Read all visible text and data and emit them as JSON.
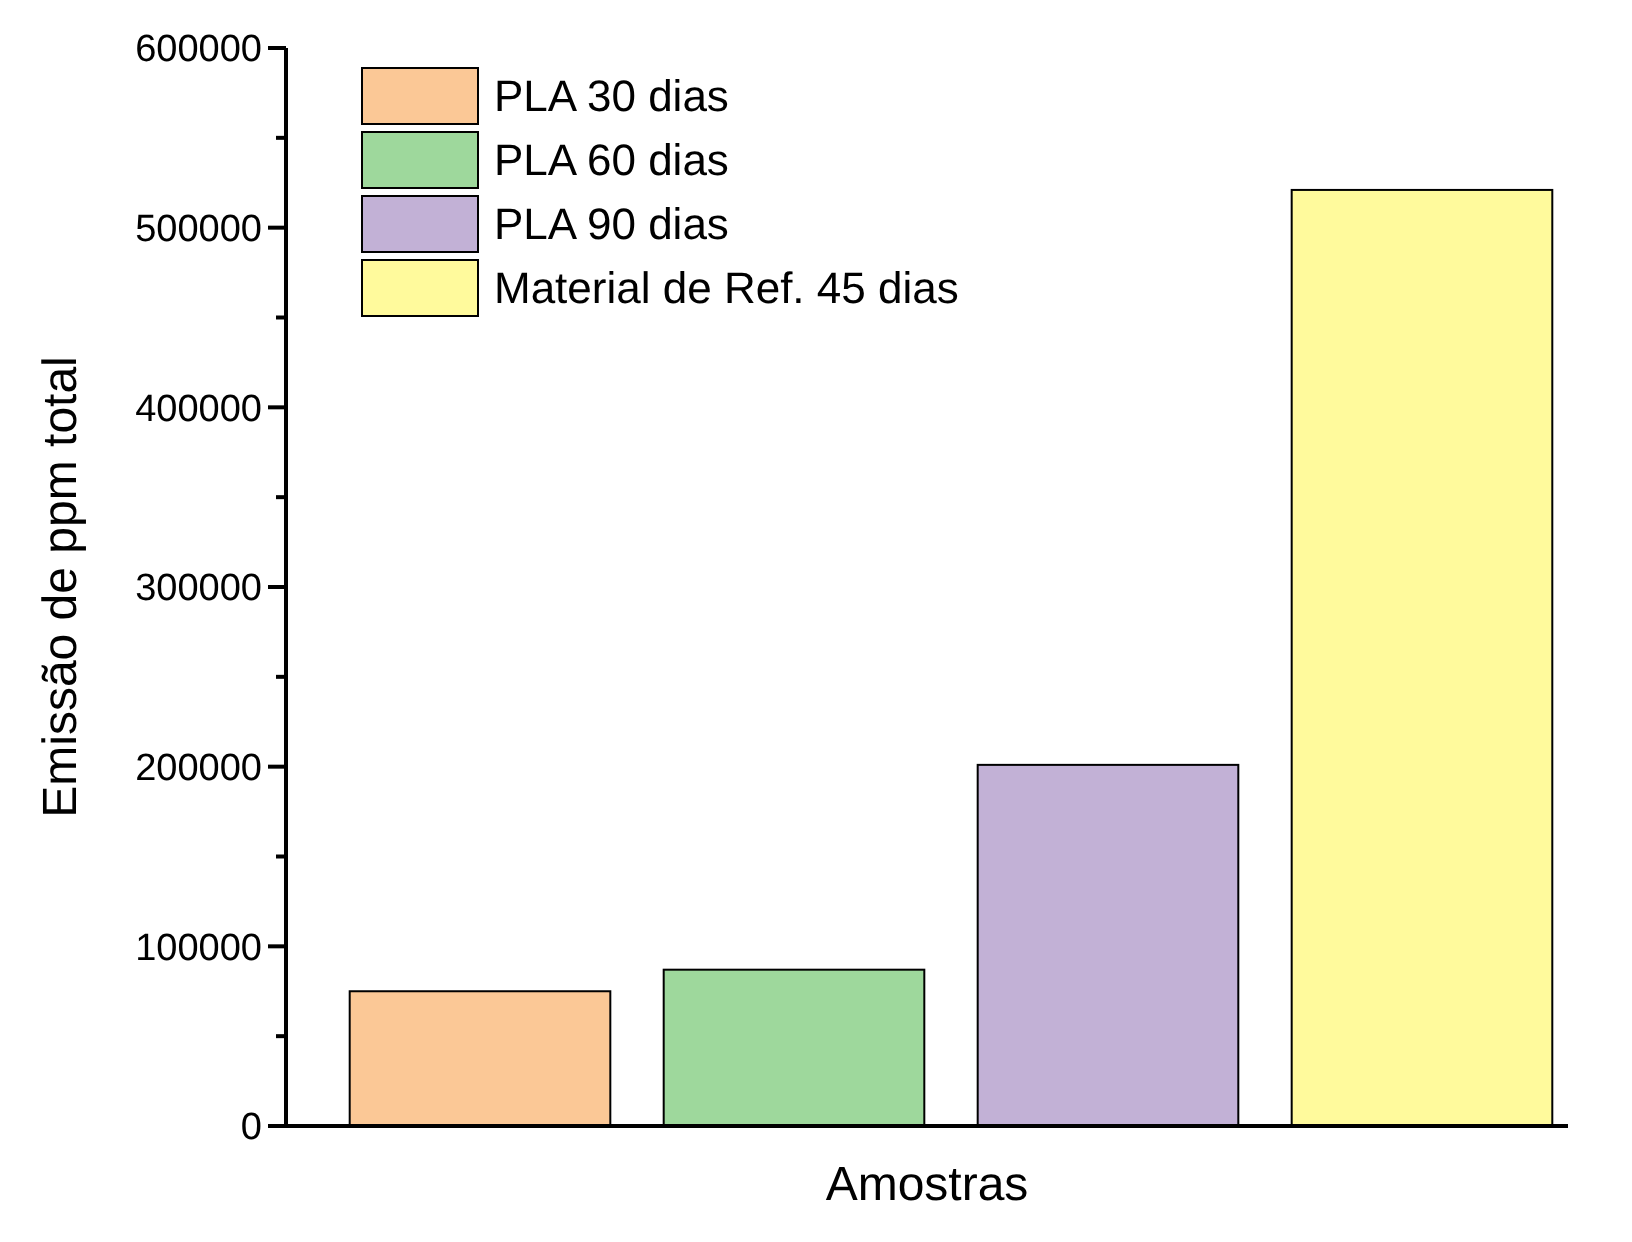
{
  "chart_data": {
    "type": "bar",
    "xlabel": "Amostras",
    "ylabel": "Emissão de ppm total",
    "categories": [
      null,
      null,
      null,
      null
    ],
    "series": [
      {
        "name": "PLA 30 dias",
        "color": "#fbc896",
        "values": [
          75000,
          null,
          null,
          null
        ]
      },
      {
        "name": "PLA 60 dias",
        "color": "#9ed89c",
        "values": [
          null,
          87000,
          null,
          null
        ]
      },
      {
        "name": "PLA 90 dias",
        "color": "#c2b1d6",
        "values": [
          null,
          null,
          201000,
          null
        ]
      },
      {
        "name": "Material de Ref. 45 dias",
        "color": "#fffa9c",
        "values": [
          null,
          null,
          null,
          521000
        ]
      }
    ],
    "ylim": [
      0,
      600000
    ],
    "yticks": [
      0,
      {
        "value": 50000,
        "label": null
      },
      100000,
      {
        "value": 150000,
        "label": null
      },
      200000,
      {
        "value": 250000,
        "label": null
      },
      300000,
      {
        "value": 350000,
        "label": null
      },
      400000,
      {
        "value": 450000,
        "label": null
      },
      500000,
      {
        "value": 550000,
        "label": null
      },
      600000
    ],
    "legend": "top left",
    "grid": false
  }
}
